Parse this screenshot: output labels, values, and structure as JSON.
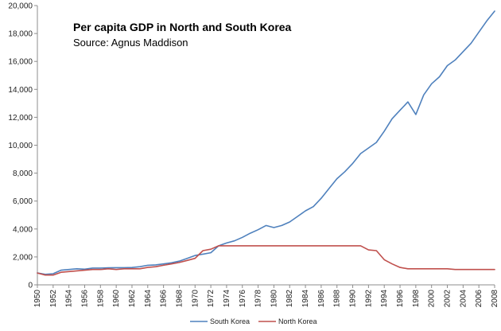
{
  "chart_data": {
    "type": "line",
    "title": "Per capita GDP in North and South Korea",
    "subtitle": "Source: Agnus Maddison",
    "xlabel": "",
    "ylabel": "",
    "ylim": [
      0,
      20000
    ],
    "xlim": [
      1950,
      2008
    ],
    "yticks": [
      "0",
      "2,000",
      "4,000",
      "6,000",
      "8,000",
      "10,000",
      "12,000",
      "14,000",
      "16,000",
      "18,000",
      "20,000"
    ],
    "xticks": [
      "1950",
      "1952",
      "1954",
      "1956",
      "1958",
      "1960",
      "1962",
      "1964",
      "1966",
      "1968",
      "1970",
      "1972",
      "1974",
      "1976",
      "1978",
      "1980",
      "1982",
      "1984",
      "1986",
      "1988",
      "1990",
      "1992",
      "1994",
      "1996",
      "1998",
      "2000",
      "2002",
      "2004",
      "2006",
      "2008"
    ],
    "grid": false,
    "legend": "bottom",
    "x": [
      1950,
      1951,
      1952,
      1953,
      1954,
      1955,
      1956,
      1957,
      1958,
      1959,
      1960,
      1961,
      1962,
      1963,
      1964,
      1965,
      1966,
      1967,
      1968,
      1969,
      1970,
      1971,
      1972,
      1973,
      1974,
      1975,
      1976,
      1977,
      1978,
      1979,
      1980,
      1981,
      1982,
      1983,
      1984,
      1985,
      1986,
      1987,
      1988,
      1989,
      1990,
      1991,
      1992,
      1993,
      1994,
      1995,
      1996,
      1997,
      1998,
      1999,
      2000,
      2001,
      2002,
      2003,
      2004,
      2005,
      2006,
      2007,
      2008
    ],
    "series": [
      {
        "name": "South Korea",
        "color": "#4f81bd",
        "values": [
          850,
          750,
          800,
          1050,
          1100,
          1150,
          1120,
          1200,
          1200,
          1220,
          1230,
          1230,
          1240,
          1300,
          1400,
          1430,
          1500,
          1580,
          1700,
          1900,
          2100,
          2200,
          2300,
          2800,
          3000,
          3150,
          3400,
          3700,
          3950,
          4250,
          4100,
          4250,
          4500,
          4900,
          5300,
          5600,
          6200,
          6900,
          7600,
          8100,
          8700,
          9400,
          9800,
          10200,
          11000,
          11900,
          12500,
          13100,
          12200,
          13600,
          14400,
          14900,
          15700,
          16100,
          16700,
          17300,
          18100,
          18900,
          19600
        ]
      },
      {
        "name": "North Korea",
        "color": "#c0504d",
        "values": [
          850,
          700,
          700,
          900,
          950,
          1000,
          1050,
          1100,
          1100,
          1150,
          1100,
          1150,
          1150,
          1150,
          1250,
          1300,
          1400,
          1500,
          1600,
          1750,
          1900,
          2450,
          2550,
          2800,
          2800,
          2800,
          2800,
          2800,
          2800,
          2800,
          2800,
          2800,
          2800,
          2800,
          2800,
          2800,
          2800,
          2800,
          2800,
          2800,
          2800,
          2800,
          2500,
          2450,
          1800,
          1500,
          1250,
          1150,
          1150,
          1150,
          1150,
          1150,
          1150,
          1100,
          1100,
          1100,
          1100,
          1100,
          1100
        ]
      }
    ]
  }
}
